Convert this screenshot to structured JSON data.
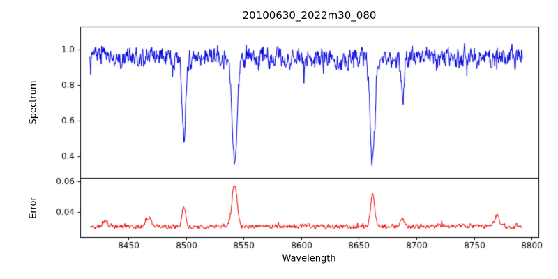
{
  "chart_data": {
    "type": "line",
    "title": "20100630_2022m30_080",
    "xlabel": "Wavelength",
    "grid": false,
    "legend": null,
    "seed": 20100630,
    "x_data_range": [
      8416,
      8792
    ],
    "xlim": [
      8408,
      8806
    ],
    "xticks": [
      8450,
      8500,
      8550,
      8600,
      8650,
      8700,
      8750,
      8800
    ],
    "xtick_labels": [
      "8450",
      "8500",
      "8550",
      "8600",
      "8650",
      "8700",
      "8750",
      "8800"
    ],
    "panels": [
      {
        "name": "spectrum",
        "ylabel": "Spectrum",
        "line_color": "#0000dd",
        "ylim": [
          0.28,
          1.13
        ],
        "yticks": [
          0.4,
          0.6,
          0.8,
          1.0
        ],
        "ytick_labels": [
          "0.4",
          "0.6",
          "0.8",
          "1.0"
        ],
        "baseline": 0.955,
        "noise_amplitude": 0.045,
        "features": [
          {
            "center": 8498,
            "amplitude": -0.47,
            "sigma": 1.6
          },
          {
            "center": 8542,
            "amplitude": -0.62,
            "sigma": 2.2
          },
          {
            "center": 8662,
            "amplitude": -0.59,
            "sigma": 2.0
          },
          {
            "center": 8688,
            "amplitude": -0.24,
            "sigma": 1.4
          }
        ]
      },
      {
        "name": "error",
        "ylabel": "Error",
        "line_color": "#ee0000",
        "ylim": [
          0.0235,
          0.0625
        ],
        "yticks": [
          0.04,
          0.06
        ],
        "ytick_labels": [
          "0.04",
          "0.06"
        ],
        "baseline": 0.0305,
        "noise_amplitude": 0.0013,
        "features": [
          {
            "center": 8430,
            "amplitude": 0.004,
            "sigma": 2.0
          },
          {
            "center": 8467,
            "amplitude": 0.006,
            "sigma": 2.0
          },
          {
            "center": 8498,
            "amplitude": 0.014,
            "sigma": 1.6
          },
          {
            "center": 8542,
            "amplitude": 0.0285,
            "sigma": 2.2
          },
          {
            "center": 8662,
            "amplitude": 0.022,
            "sigma": 1.8
          },
          {
            "center": 8688,
            "amplitude": 0.005,
            "sigma": 1.4
          },
          {
            "center": 8770,
            "amplitude": 0.007,
            "sigma": 2.5
          }
        ]
      }
    ]
  }
}
